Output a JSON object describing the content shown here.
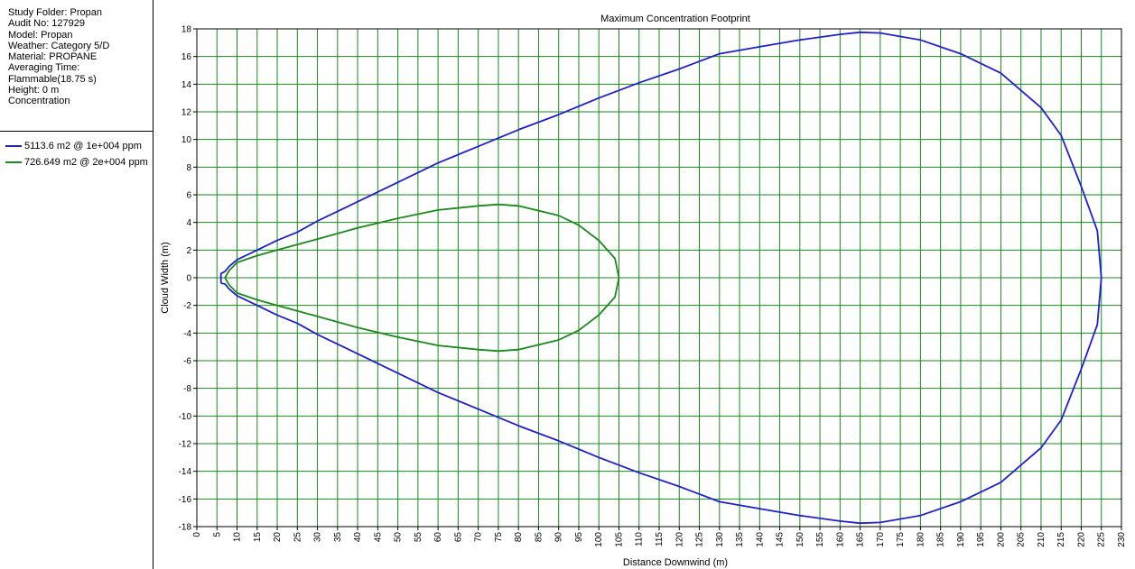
{
  "info": [
    "Study Folder: Propan",
    "Audit No: 127929",
    "Model: Propan",
    "Weather: Category 5/D",
    "Material: PROPANE",
    "Averaging Time:",
    "Flammable(18.75 s)",
    "Height: 0 m",
    "Concentration"
  ],
  "legend": [
    {
      "label": "5113.6 m2 @ 1e+004 ppm",
      "color": "#1f1fd0"
    },
    {
      "label": "726.649 m2 @ 2e+004 ppm",
      "color": "#1a8a1a"
    }
  ],
  "grid_color": "#1a8a1a",
  "chart_data": {
    "type": "line",
    "title": "Maximum Concentration Footprint",
    "xlabel": "Distance Downwind (m)",
    "ylabel": "Cloud Width (m)",
    "xlim": [
      0,
      230
    ],
    "ylim": [
      -18,
      18
    ],
    "x_tick_step": 5,
    "y_tick_step": 2,
    "grid": true,
    "series": [
      {
        "name": "5113.6 m2 @ 1e+004 ppm",
        "color": "#1f1fd0",
        "points": [
          [
            6,
            -0.4
          ],
          [
            6,
            0.3
          ],
          [
            7,
            0.45
          ],
          [
            8,
            0.8
          ],
          [
            10,
            1.3
          ],
          [
            15,
            2.0
          ],
          [
            20,
            2.7
          ],
          [
            25,
            3.3
          ],
          [
            30,
            4.1
          ],
          [
            40,
            5.5
          ],
          [
            50,
            6.9
          ],
          [
            60,
            8.3
          ],
          [
            70,
            9.5
          ],
          [
            80,
            10.7
          ],
          [
            90,
            11.8
          ],
          [
            100,
            13.0
          ],
          [
            110,
            14.1
          ],
          [
            120,
            15.1
          ],
          [
            130,
            16.2
          ],
          [
            140,
            16.7
          ],
          [
            150,
            17.2
          ],
          [
            160,
            17.6
          ],
          [
            165,
            17.75
          ],
          [
            170,
            17.7
          ],
          [
            180,
            17.2
          ],
          [
            190,
            16.2
          ],
          [
            200,
            14.8
          ],
          [
            210,
            12.3
          ],
          [
            215,
            10.3
          ],
          [
            220,
            6.6
          ],
          [
            224,
            3.4
          ],
          [
            225,
            0
          ],
          [
            224,
            -3.4
          ],
          [
            220,
            -6.6
          ],
          [
            215,
            -10.3
          ],
          [
            210,
            -12.3
          ],
          [
            200,
            -14.8
          ],
          [
            190,
            -16.2
          ],
          [
            180,
            -17.2
          ],
          [
            170,
            -17.7
          ],
          [
            165,
            -17.75
          ],
          [
            160,
            -17.6
          ],
          [
            150,
            -17.2
          ],
          [
            140,
            -16.7
          ],
          [
            130,
            -16.2
          ],
          [
            120,
            -15.1
          ],
          [
            110,
            -14.1
          ],
          [
            100,
            -13.0
          ],
          [
            90,
            -11.8
          ],
          [
            80,
            -10.7
          ],
          [
            70,
            -9.5
          ],
          [
            60,
            -8.3
          ],
          [
            50,
            -6.9
          ],
          [
            40,
            -5.5
          ],
          [
            30,
            -4.1
          ],
          [
            25,
            -3.3
          ],
          [
            20,
            -2.7
          ],
          [
            15,
            -2.0
          ],
          [
            10,
            -1.3
          ],
          [
            8,
            -0.8
          ],
          [
            7,
            -0.45
          ],
          [
            6,
            -0.4
          ]
        ]
      },
      {
        "name": "726.649 m2 @ 2e+004 ppm",
        "color": "#1a8a1a",
        "points": [
          [
            7,
            0
          ],
          [
            8,
            0.5
          ],
          [
            10,
            1.1
          ],
          [
            15,
            1.6
          ],
          [
            20,
            2.0
          ],
          [
            30,
            2.8
          ],
          [
            40,
            3.6
          ],
          [
            50,
            4.3
          ],
          [
            60,
            4.9
          ],
          [
            70,
            5.2
          ],
          [
            75,
            5.3
          ],
          [
            80,
            5.2
          ],
          [
            90,
            4.5
          ],
          [
            95,
            3.8
          ],
          [
            100,
            2.7
          ],
          [
            104,
            1.4
          ],
          [
            105,
            0
          ],
          [
            104,
            -1.4
          ],
          [
            100,
            -2.7
          ],
          [
            95,
            -3.8
          ],
          [
            90,
            -4.5
          ],
          [
            80,
            -5.2
          ],
          [
            75,
            -5.3
          ],
          [
            70,
            -5.2
          ],
          [
            60,
            -4.9
          ],
          [
            50,
            -4.3
          ],
          [
            40,
            -3.6
          ],
          [
            30,
            -2.8
          ],
          [
            20,
            -2.0
          ],
          [
            15,
            -1.6
          ],
          [
            10,
            -1.1
          ],
          [
            8,
            -0.5
          ],
          [
            7,
            0
          ]
        ]
      }
    ]
  }
}
